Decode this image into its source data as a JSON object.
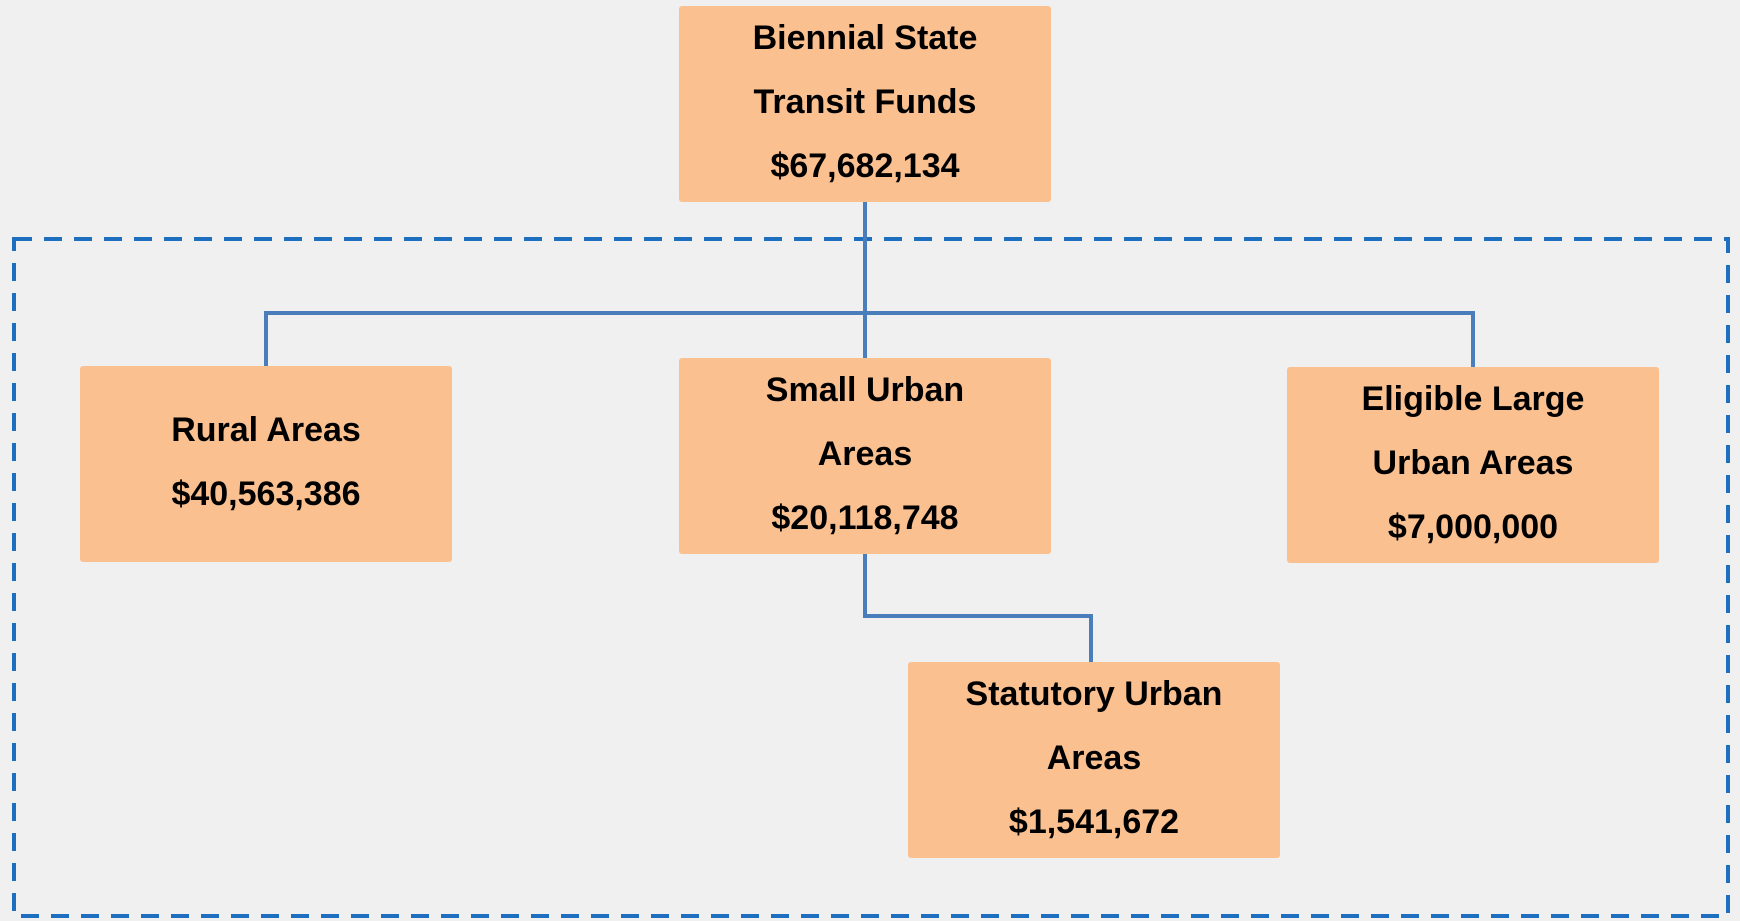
{
  "nodes": [
    {
      "lines": [
        "Biennial State",
        "Transit Funds"
      ],
      "amount": "$67,682,134"
    },
    {
      "lines": [
        "Rural Areas"
      ],
      "amount": "$40,563,386"
    },
    {
      "lines": [
        "Small Urban",
        "Areas"
      ],
      "amount": "$20,118,748"
    },
    {
      "lines": [
        "Eligible Large",
        "Urban Areas"
      ],
      "amount": "$7,000,000"
    },
    {
      "lines": [
        "Statutory Urban",
        "Areas"
      ],
      "amount": "$1,541,672"
    }
  ]
}
